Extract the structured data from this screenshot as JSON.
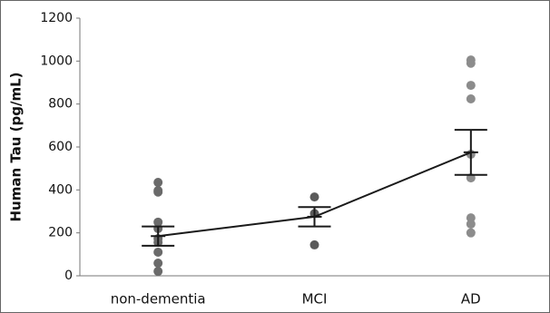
{
  "chart_data": {
    "type": "strip",
    "y_label": "Human Tau (pg/mL)",
    "categories": [
      "non-dementia",
      "MCI",
      "AD"
    ],
    "points": [
      {
        "color": "#6a6a6a",
        "values": [
          435,
          397,
          390,
          250,
          220,
          173,
          156,
          110,
          59,
          21
        ]
      },
      {
        "color": "#5a5a5a",
        "values": [
          367,
          290,
          144
        ]
      },
      {
        "color": "#8c8c8c",
        "values": [
          1005,
          990,
          887,
          824,
          566,
          456,
          270,
          241,
          200
        ]
      }
    ],
    "means": [
      185,
      275,
      575
    ],
    "error_upper": [
      230,
      320,
      680
    ],
    "error_lower": [
      140,
      230,
      470
    ],
    "line_color": "#1a1a1a",
    "ylim": [
      0,
      1200
    ],
    "yticks": [
      0,
      200,
      400,
      600,
      800,
      1000,
      1200
    ]
  }
}
